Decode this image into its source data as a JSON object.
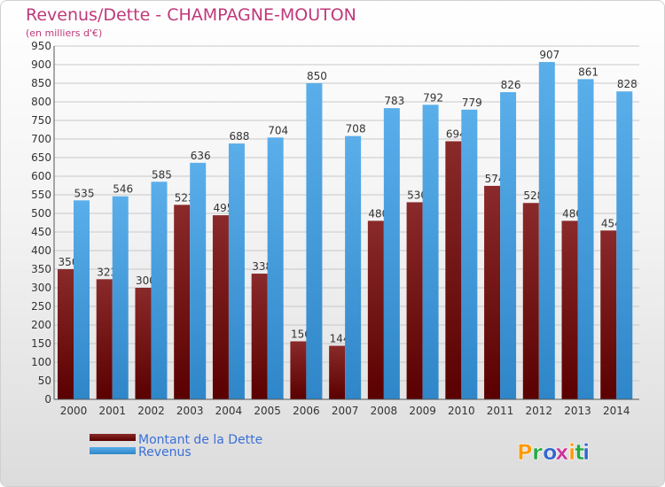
{
  "chart_data": {
    "type": "bar",
    "title": "Revenus/Dette - CHAMPAGNE-MOUTON",
    "subtitle": "(en milliers d'€)",
    "categories": [
      "2000",
      "2001",
      "2002",
      "2003",
      "2004",
      "2005",
      "2006",
      "2007",
      "2008",
      "2009",
      "2010",
      "2011",
      "2012",
      "2013",
      "2014"
    ],
    "series": [
      {
        "name": "Montant de la Dette",
        "values": [
          350,
          323,
          300,
          523,
          495,
          338,
          156,
          144,
          480,
          530,
          694,
          574,
          528,
          480,
          454
        ],
        "color": "#7a1010"
      },
      {
        "name": "Revenus",
        "values": [
          535,
          546,
          585,
          636,
          688,
          704,
          850,
          708,
          783,
          792,
          779,
          826,
          907,
          861,
          828
        ],
        "color": "#4da6e8"
      }
    ],
    "ylim": [
      0,
      950
    ],
    "yticks": [
      0,
      50,
      100,
      150,
      200,
      250,
      300,
      350,
      400,
      450,
      500,
      550,
      600,
      650,
      700,
      750,
      800,
      850,
      900,
      950
    ],
    "grid": true,
    "legend_placement": "bottom-left"
  },
  "colors": {
    "title": "#c0387a",
    "legend_text": "#3b6fd8",
    "logo_colors": [
      "#ff9900",
      "#22aa44",
      "#3366cc",
      "#cc3399"
    ]
  },
  "logo": {
    "text": "Proxiti"
  }
}
